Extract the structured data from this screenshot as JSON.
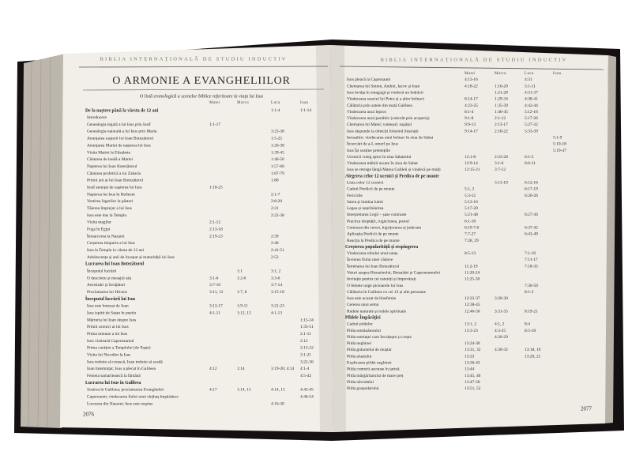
{
  "left_page": {
    "running_head": "BIBLIA INTERNAȚIONALĂ DE STUDIU INDUCTIV",
    "title": "O ARMONIE A EVANGHELIILOR",
    "subtitle": "O listă cronologică a scenelor biblice referitoare la viața lui Isus",
    "columns": [
      "Matei",
      "Marcu",
      "Luca",
      "Ioan"
    ],
    "rows": [
      {
        "section": "De la naștere până la vârsta de 12 ani",
        "refs": [
          null,
          null,
          "1:1-4",
          "1:1-14"
        ]
      },
      {
        "event": "Introducere",
        "refs": [
          null,
          null,
          null,
          null
        ]
      },
      {
        "event": "Genealogia legală a lui Isus prin Iosif",
        "refs": [
          "1:1-17",
          null,
          null,
          null
        ]
      },
      {
        "event": "Genealogia naturală a lui Isus prin Maria",
        "refs": [
          null,
          null,
          "3:23-38",
          null
        ]
      },
      {
        "event": "Anunțarea nașterii lui Ioan Botezătorul",
        "refs": [
          null,
          null,
          "1:5-25",
          null
        ]
      },
      {
        "event": "Anunțarea Mariei de nașterea lui Isus",
        "refs": [
          null,
          null,
          "1:26-38",
          null
        ]
      },
      {
        "event": "Vizita Mariei la Elisabeta",
        "refs": [
          null,
          null,
          "1:39-45",
          null
        ]
      },
      {
        "event": "Cântarea de laudă a Mariei",
        "refs": [
          null,
          null,
          "1:46-56",
          null
        ]
      },
      {
        "event": "Nașterea lui Ioan Botezătorul",
        "refs": [
          null,
          null,
          "1:57-66",
          null
        ]
      },
      {
        "event": "Cântarea profetică a lui Zaharia",
        "refs": [
          null,
          null,
          "1:67-79",
          null
        ]
      },
      {
        "event": "Primii ani ai lui Ioan Botezătorul",
        "refs": [
          null,
          null,
          "1:80",
          null
        ]
      },
      {
        "event": "Iosif anunțat de nașterea lui Isus",
        "refs": [
          "1:18-25",
          null,
          null,
          null
        ]
      },
      {
        "event": "Nașterea lui Isus în Betleem",
        "refs": [
          null,
          null,
          "2:1-7",
          null
        ]
      },
      {
        "event": "Vestirea îngerilor la păstori",
        "refs": [
          null,
          null,
          "2:8-20",
          null
        ]
      },
      {
        "event": "Tăierea împrejur a lui Isus",
        "refs": [
          null,
          null,
          "2:21",
          null
        ]
      },
      {
        "event": "Isus este dus la Templu",
        "refs": [
          null,
          null,
          "2:22-38",
          null
        ]
      },
      {
        "event": "Vizita magilor",
        "refs": [
          "2:1-12",
          null,
          null,
          null
        ]
      },
      {
        "event": "Fuga în Egipt",
        "refs": [
          "2:13-18",
          null,
          null,
          null
        ]
      },
      {
        "event": "Întoarcerea la Nazaret",
        "refs": [
          "2:19-23",
          null,
          "2:39",
          null
        ]
      },
      {
        "event": "Creșterea timpurie a lui Isus",
        "refs": [
          null,
          null,
          "2:40",
          null
        ]
      },
      {
        "event": "Isus la Templu la vârsta de 12 ani",
        "refs": [
          null,
          null,
          "2:41-51",
          null
        ]
      },
      {
        "event": "Adolescența și anii de început ai maturității lui Isus",
        "refs": [
          null,
          null,
          "2:52",
          null
        ]
      },
      {
        "section": "Lucrarea lui Ioan Botezătorul",
        "refs": [
          null,
          null,
          null,
          null
        ]
      },
      {
        "event": "Începutul lucrării",
        "refs": [
          null,
          "1:1",
          "3:1, 2",
          null
        ]
      },
      {
        "event": "O descriere și mesajul său",
        "refs": [
          "3:1-6",
          "1:2-6",
          "3:3-6",
          null
        ]
      },
      {
        "event": "Avertizări și învățături",
        "refs": [
          "3:7-10",
          null,
          "3:7-14",
          null
        ]
      },
      {
        "event": "Proclamarea lui Hristos",
        "refs": [
          "3:11, 12",
          "1:7, 8",
          "3:15-18",
          null
        ]
      },
      {
        "section": "Începutul lucrării lui Isus",
        "refs": [
          null,
          null,
          null,
          null
        ]
      },
      {
        "event": "Isus este botezat de Ioan",
        "refs": [
          "3:13-17",
          "1:9-11",
          "3:21-23",
          null
        ]
      },
      {
        "event": "Isus ispitit de Satan în pustiu",
        "refs": [
          "4:1-11",
          "1:12, 13",
          "4:1-13",
          null
        ]
      },
      {
        "event": "Mărturia lui Ioan despre Isus",
        "refs": [
          null,
          null,
          null,
          "1:15-34"
        ]
      },
      {
        "event": "Primii ucenici ai lui Isus",
        "refs": [
          null,
          null,
          null,
          "1:35-51"
        ]
      },
      {
        "event": "Prima minune a lui Isus",
        "refs": [
          null,
          null,
          null,
          "2:1-11"
        ]
      },
      {
        "event": "Isus vizitează Capernaumul",
        "refs": [
          null,
          null,
          null,
          "2:12"
        ]
      },
      {
        "event": "Prima curățire a Templului (de Paște)",
        "refs": [
          null,
          null,
          null,
          "2:13-22"
        ]
      },
      {
        "event": "Vizita lui Nicodim la Isus",
        "refs": [
          null,
          null,
          null,
          "3:1-21"
        ]
      },
      {
        "event": "Isus trebuie să crească, Ioan trebuie să scadă",
        "refs": [
          null,
          null,
          null,
          "3:22-36"
        ]
      },
      {
        "event": "Ioan întemnițat; Isus a plecat în Galileea",
        "refs": [
          "4:12",
          "1:14",
          "3:19-20; 4:14",
          "4:1-4"
        ]
      },
      {
        "event": "Femeia samariteancă la fântână",
        "refs": [
          null,
          null,
          null,
          "4:5-42"
        ]
      },
      {
        "section": "Lucrarea lui Isus în Galileea",
        "refs": [
          null,
          null,
          null,
          null
        ]
      },
      {
        "event": "Sosirea în Galileea; proclamarea Evangheliei",
        "refs": [
          "4:17",
          "1:14, 15",
          "4:14, 15",
          "4:43-45"
        ]
      },
      {
        "event": "Capernaum; vindecarea fiului unui slujbaș împărătesc",
        "refs": [
          null,
          null,
          null,
          "4:46-54"
        ]
      },
      {
        "event": "Lucrarea din Nazaret; Isus este respins",
        "refs": [
          null,
          null,
          "4:16-30",
          null
        ]
      }
    ],
    "page_number": "2076"
  },
  "right_page": {
    "running_head": "BIBLIA INTERNAȚIONALĂ DE STUDIU INDUCTIV",
    "columns": [
      "Matei",
      "Marcu",
      "Luca",
      "Ioan"
    ],
    "rows": [
      {
        "event": "Isus pleacă la Capernaum",
        "refs": [
          "4:13-16",
          null,
          "4:31",
          null
        ]
      },
      {
        "event": "Chemarea lui Simon, Andrei, Iacov și Ioan",
        "refs": [
          "4:18-22",
          "1:16-20",
          "5:1-11",
          null
        ]
      },
      {
        "event": "Isus învăța în sinagogă și vindecă un îndrăcit",
        "refs": [
          null,
          "1:21-28",
          "4:31-37",
          null
        ]
      },
      {
        "event": "Vindecarea soacrei lui Petru și a altor bolnavi",
        "refs": [
          "8:14-17",
          "1:29-34",
          "4:38-41",
          null
        ]
      },
      {
        "event": "Călătoria prin satele din toată Galileea",
        "refs": [
          "4:23-25",
          "1:35-39",
          "4:42-44",
          null
        ]
      },
      {
        "event": "Vindecarea unui lepros",
        "refs": [
          "8:1-4",
          "1:40-45",
          "5:12-16",
          null
        ]
      },
      {
        "event": "Vindecarea unui paralitic (coborât prin acoperiș)",
        "refs": [
          "9:1-8",
          "2:1-12",
          "5:17-26",
          null
        ]
      },
      {
        "event": "Chemarea lui Matei; vameșul; ospățul",
        "refs": [
          "9:9-13",
          "2:13-17",
          "5:27-32",
          null
        ]
      },
      {
        "event": "Isus răspunde la obiecții folosind ilustrații",
        "refs": [
          "9:14-17",
          "2:18-22",
          "5:33-39",
          null
        ]
      },
      {
        "event": "Ierusalim: vindecarea unui bolnav în ziua de Sabat",
        "refs": [
          null,
          null,
          null,
          "5:1-9"
        ]
      },
      {
        "event": "Încercări de a-L omorî pe Isus",
        "refs": [
          null,
          null,
          null,
          "5:10-18"
        ]
      },
      {
        "event": "Isus Își susține pretențiile",
        "refs": [
          null,
          null,
          null,
          "5:19-47"
        ]
      },
      {
        "event": "Ucenicii culeg spice în ziua Sabatului",
        "refs": [
          "12:1-8",
          "2:23-28",
          "6:1-5",
          null
        ]
      },
      {
        "event": "Vindecarea mâinii uscate în ziua de Sabat",
        "refs": [
          "12:9-14",
          "3:1-6",
          "6:6-11",
          null
        ]
      },
      {
        "event": "Isus se retrage lângă Marea Galileii și vindecă pe mulți",
        "refs": [
          "12:15-21",
          "3:7-12",
          null,
          null
        ]
      },
      {
        "section": "Alegerea celor 12 ucenici și Predica de pe munte",
        "refs": [
          null,
          null,
          null,
          null
        ]
      },
      {
        "event": "Lista celor 12 ucenici",
        "refs": [
          null,
          "3:13-19",
          "6:12-16",
          null
        ]
      },
      {
        "event": "Cadrul Predicii de pe munte",
        "refs": [
          "5:1, 2",
          null,
          "6:17-19",
          null
        ]
      },
      {
        "event": "Fericirile",
        "refs": [
          "5:3-12",
          null,
          "6:20-26",
          null
        ]
      },
      {
        "event": "Sarea și lumina lumii",
        "refs": [
          "5:13-16",
          null,
          null,
          null
        ]
      },
      {
        "event": "Legea și neprihănirea",
        "refs": [
          "5:17-20",
          null,
          null,
          null
        ]
      },
      {
        "event": "Interpretarea Legii – șase contraste",
        "refs": [
          "5:21-48",
          null,
          "6:27-36",
          null
        ]
      },
      {
        "event": "Practica dreptății, rugăciunea, postul",
        "refs": [
          "6:1-18",
          null,
          null,
          null
        ]
      },
      {
        "event": "Comoara din ceruri, îngrijorarea și judecata",
        "refs": [
          "6:19-7:6",
          null,
          "6:37-42",
          null
        ]
      },
      {
        "event": "Aplicația Predicii de pe munte",
        "refs": [
          "7:7-27",
          null,
          "6:43-49",
          null
        ]
      },
      {
        "event": "Reacția la Predica de pe munte",
        "refs": [
          "7:28, 29",
          null,
          null,
          null
        ]
      },
      {
        "section": "Creșterea popularității și respingerea",
        "refs": [
          null,
          null,
          null,
          null
        ]
      },
      {
        "event": "Vindecarea robului unui sutaș",
        "refs": [
          "8:5-13",
          null,
          "7:1-10",
          null
        ]
      },
      {
        "event": "Învierea fiului unei văduve",
        "refs": [
          null,
          null,
          "7:11-17",
          null
        ]
      },
      {
        "event": "Întrebarea lui Ioan Botezătorul",
        "refs": [
          "11:2-19",
          null,
          "7:18-35",
          null
        ]
      },
      {
        "event": "Vaiuri asupra Horazinului, Betsaidei și Capernaumului",
        "refs": [
          "11:20-24",
          null,
          null,
          null
        ]
      },
      {
        "event": "Invitație pentru cei osteniți și împovărați",
        "refs": [
          "11:25-30",
          null,
          null,
          null
        ]
      },
      {
        "event": "O femeie unge picioarele lui Isus",
        "refs": [
          null,
          null,
          "7:36-50",
          null
        ]
      },
      {
        "event": "Călătoria în Galileea cu cei 12 și alte persoane",
        "refs": [
          null,
          null,
          "8:1-3",
          null
        ]
      },
      {
        "event": "Isus este acuzat de blasfemie",
        "refs": [
          "12:22-37",
          "3:20-30",
          null,
          null
        ]
      },
      {
        "event": "Cererea unui semn",
        "refs": [
          "12:38-45",
          null,
          null,
          null
        ]
      },
      {
        "event": "Rudele naturale și rudele spirituale",
        "refs": [
          "12:46-50",
          "3:31-35",
          "8:19-21",
          null
        ]
      },
      {
        "section": "Pildele Împărăției",
        "refs": [
          null,
          null,
          null,
          null
        ]
      },
      {
        "event": "Cadrul pildelor",
        "refs": [
          "13:1, 2",
          "4:1, 2",
          "8:4",
          null
        ]
      },
      {
        "event": "Pilda semănătorului",
        "refs": [
          "13:3-23",
          "4:3-25",
          "8:5-18",
          null
        ]
      },
      {
        "event": "Pilda seminței care încolțește și crește",
        "refs": [
          null,
          "4:26-29",
          null,
          null
        ]
      },
      {
        "event": "Pilda neghinei",
        "refs": [
          "13:24-30",
          null,
          null,
          null
        ]
      },
      {
        "event": "Pilda grăuntelui de muștar",
        "refs": [
          "13:31, 32",
          "4:30-32",
          "13:18, 19",
          null
        ]
      },
      {
        "event": "Pilda aluatului",
        "refs": [
          "13:33",
          null,
          "13:20, 21",
          null
        ]
      },
      {
        "event": "Explicarea pildei neghinei",
        "refs": [
          "13:36-43",
          null,
          null,
          null
        ]
      },
      {
        "event": "Pilda comorii ascunse în țarină",
        "refs": [
          "13:44",
          null,
          null,
          null
        ]
      },
      {
        "event": "Pilda mărgăritarului de mare preț",
        "refs": [
          "13:45, 46",
          null,
          null,
          null
        ]
      },
      {
        "event": "Pilda năvodului",
        "refs": [
          "13:47-50",
          null,
          null,
          null
        ]
      },
      {
        "event": "Pilda gospodarului",
        "refs": [
          "13:51, 52",
          null,
          null,
          null
        ]
      }
    ],
    "page_number": "2077"
  }
}
